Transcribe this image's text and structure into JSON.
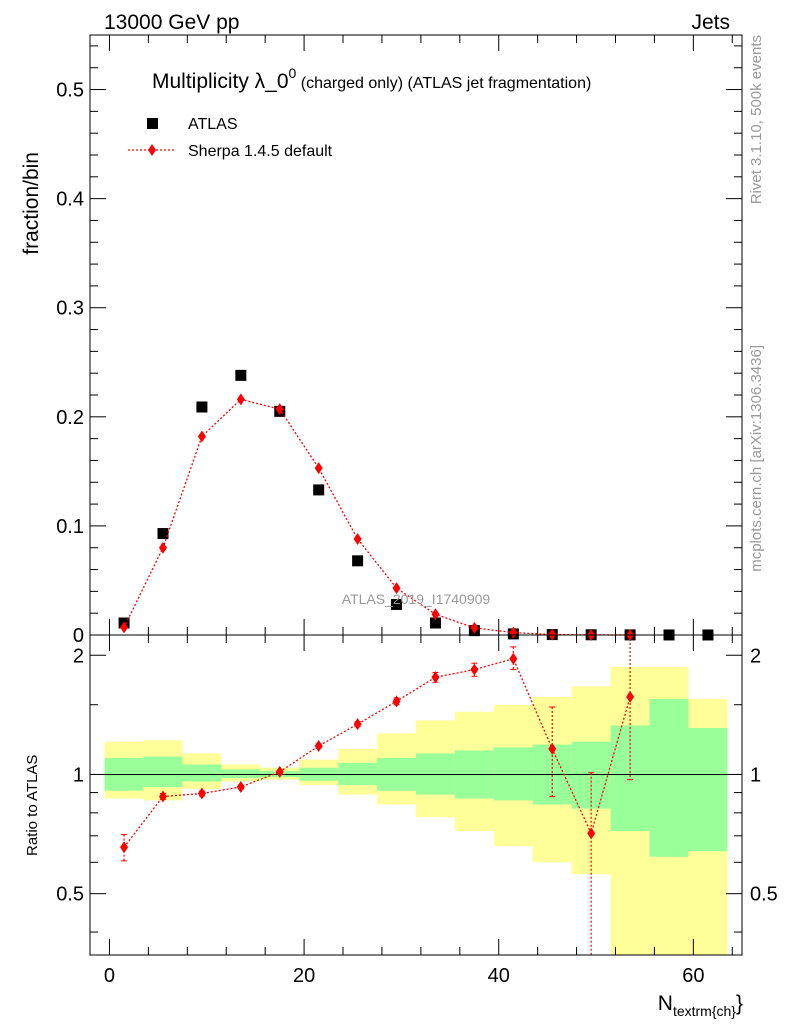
{
  "header": {
    "left": "13000 GeV pp",
    "right": "Jets"
  },
  "side_labels": {
    "rivet": "Rivet 3.1.10,  500k events",
    "mcplots": "mcplots.cern.ch [arXiv:1306.3436]"
  },
  "chart_data": [
    {
      "type": "scatter",
      "panel": "main",
      "title_main": "Multiplicity λ_0",
      "title_sup": "0",
      "title_extra": " (charged only) (ATLAS jet fragmentation)",
      "ylabel": "fraction/bin",
      "watermark": "ATLAS_2019_I1740909",
      "xlim": [
        -2,
        65
      ],
      "ylim": [
        0,
        0.55
      ],
      "yticks": [
        0,
        0.1,
        0.2,
        0.3,
        0.4,
        0.5
      ],
      "ytick_labels": [
        "0",
        "0.1",
        "0.2",
        "0.3",
        "0.4",
        "0.5"
      ],
      "legend_position": "top-left",
      "series": [
        {
          "name": "ATLAS",
          "marker": "square",
          "color": "#000000",
          "x": [
            1.5,
            5.5,
            9.5,
            13.5,
            17.5,
            21.5,
            25.5,
            29.5,
            33.5,
            37.5,
            41.5,
            45.5,
            49.5,
            53.5,
            57.5,
            61.5
          ],
          "y": [
            0.011,
            0.093,
            0.209,
            0.238,
            0.205,
            0.133,
            0.068,
            0.028,
            0.011,
            0.004,
            0.001,
            0.0004,
            0.0002,
            0.0001,
            4e-05,
            2e-05
          ]
        },
        {
          "name": "Sherpa 1.4.5 default",
          "marker": "diamond",
          "color": "#ff0000",
          "x": [
            1.5,
            5.5,
            9.5,
            13.5,
            17.5,
            21.5,
            25.5,
            29.5,
            33.5,
            37.5,
            41.5,
            45.5,
            49.5,
            53.5
          ],
          "y": [
            0.007,
            0.08,
            0.182,
            0.216,
            0.207,
            0.153,
            0.088,
            0.043,
            0.019,
            0.0065,
            0.0022,
            0.0005,
            0.0001,
            5e-05
          ]
        }
      ]
    },
    {
      "type": "scatter",
      "panel": "ratio",
      "ylabel": "Ratio to ATLAS",
      "xlabel": "N",
      "xlabel_sub": "textrm{ch}",
      "xlabel_close": "}",
      "xlim": [
        -2,
        65
      ],
      "ylim": [
        0.35,
        2.25
      ],
      "yscale": "log",
      "xticks": [
        0,
        20,
        40,
        60
      ],
      "xtick_labels": [
        "0",
        "20",
        "40",
        "60"
      ],
      "yticks": [
        0.5,
        1,
        2
      ],
      "ytick_labels": [
        "0.5",
        "1",
        "2"
      ],
      "bands": {
        "edges": [
          -0.5,
          3.5,
          7.5,
          11.5,
          15.5,
          19.5,
          23.5,
          27.5,
          31.5,
          35.5,
          39.5,
          43.5,
          47.5,
          51.5,
          55.5,
          59.5,
          63.5
        ],
        "stat_lo": [
          0.91,
          0.93,
          0.96,
          0.98,
          0.985,
          0.965,
          0.94,
          0.91,
          0.89,
          0.87,
          0.86,
          0.84,
          0.82,
          0.72,
          0.62,
          0.64
        ],
        "stat_hi": [
          1.1,
          1.11,
          1.06,
          1.03,
          1.02,
          1.04,
          1.07,
          1.1,
          1.13,
          1.15,
          1.17,
          1.19,
          1.21,
          1.33,
          1.55,
          1.31
        ],
        "syst_lo": [
          0.87,
          0.86,
          0.92,
          0.96,
          0.97,
          0.94,
          0.89,
          0.84,
          0.78,
          0.72,
          0.66,
          0.6,
          0.56,
          0.3,
          0.3,
          0.3
        ],
        "syst_hi": [
          1.21,
          1.22,
          1.13,
          1.06,
          1.04,
          1.09,
          1.16,
          1.27,
          1.37,
          1.44,
          1.5,
          1.57,
          1.67,
          1.87,
          1.87,
          1.55
        ],
        "stat_color": "#99ff99",
        "syst_color": "#ffff99"
      },
      "reference_line": 1,
      "series": [
        {
          "name": "Sherpa 1.4.5 default",
          "marker": "diamond",
          "color": "#ff0000",
          "x": [
            1.5,
            5.5,
            9.5,
            13.5,
            17.5,
            21.5,
            25.5,
            29.5,
            33.5,
            37.5,
            41.5,
            45.5,
            49.5,
            53.5
          ],
          "y": [
            0.655,
            0.88,
            0.895,
            0.93,
            1.015,
            1.18,
            1.34,
            1.53,
            1.76,
            1.84,
            1.96,
            1.16,
            0.71,
            1.57
          ],
          "err_lo": [
            0.05,
            0.015,
            0.012,
            0.01,
            0.01,
            0.015,
            0.02,
            0.03,
            0.05,
            0.07,
            0.12,
            0.28,
            0.36,
            0.6
          ],
          "err_hi": [
            0.05,
            0.015,
            0.012,
            0.01,
            0.01,
            0.015,
            0.02,
            0.03,
            0.05,
            0.07,
            0.14,
            0.32,
            0.3,
            0.9
          ]
        }
      ]
    }
  ]
}
